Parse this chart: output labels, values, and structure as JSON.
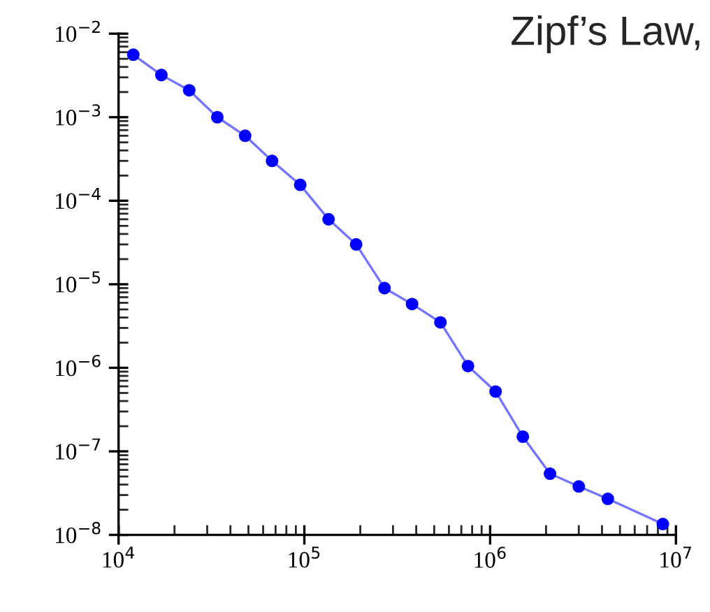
{
  "chart_data": {
    "type": "line",
    "title": "Zipf’s Law,",
    "log": "xy",
    "marker": "circle",
    "line_style": "solid",
    "grid": false,
    "legend": false,
    "x": [
      12000,
      17000,
      24000,
      34000,
      48000,
      67000,
      95000,
      135000,
      190000,
      270000,
      380000,
      540000,
      760000,
      1070000,
      1500000,
      2100000,
      3000000,
      4300000,
      8500000
    ],
    "series": [
      {
        "color": "#0000ff",
        "values": [
          0.0056,
          0.0032,
          0.0021,
          0.001,
          0.0006,
          0.0003,
          0.000155,
          6e-05,
          3e-05,
          9e-06,
          5.8e-06,
          3.5e-06,
          1.05e-06,
          5.2e-07,
          1.5e-07,
          5.4e-08,
          3.8e-08,
          2.7e-08,
          1.35e-08
        ]
      }
    ],
    "xlim": [
      10000,
      10000000
    ],
    "ylim": [
      1e-08,
      0.01
    ],
    "xticks": [
      {
        "value": 10000,
        "label": "10$^{4}$"
      },
      {
        "value": 100000,
        "label": "10$^{5}$"
      },
      {
        "value": 1000000,
        "label": "10$^{6}$"
      },
      {
        "value": 10000000,
        "label": "10$^{7}$"
      }
    ],
    "yticks": [
      {
        "value": 1e-08,
        "label": "10$^{−8}$"
      },
      {
        "value": 1e-07,
        "label": "10$^{−7}$"
      },
      {
        "value": 1e-06,
        "label": "10$^{−6}$"
      },
      {
        "value": 1e-05,
        "label": "10$^{−5}$"
      },
      {
        "value": 0.0001,
        "label": "10$^{−4}$"
      },
      {
        "value": 0.001,
        "label": "10$^{−3}$"
      },
      {
        "value": 0.01,
        "label": "10$^{−2}$"
      }
    ]
  }
}
